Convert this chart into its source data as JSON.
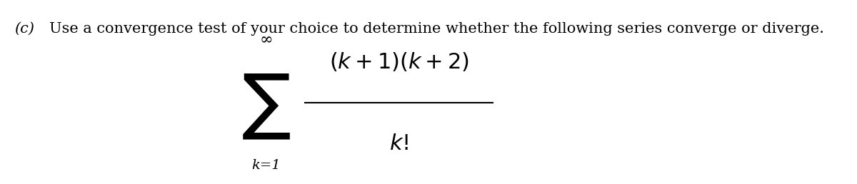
{
  "background_color": "#ffffff",
  "label_c": "(c)",
  "instruction": "Use a convergence test of your choice to determine whether the following series converge or diverge.",
  "instruction_fontsize": 15,
  "label_fontsize": 15,
  "numerator": "(k + 1)(k + 2)",
  "denominator": "k!",
  "summation_bottom": "k=1",
  "summation_top": "∞",
  "math_fontsize": 22,
  "sigma_fontsize": 52,
  "small_fontsize": 14,
  "fig_width": 12.0,
  "fig_height": 2.58,
  "dpi": 100
}
